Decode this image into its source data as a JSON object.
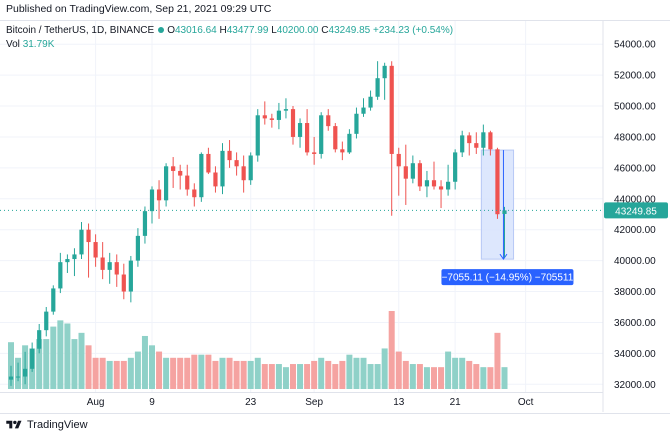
{
  "header": {
    "published": "Published on TradingView.com, Sep 21, 2021 09:29 UTC"
  },
  "legend": {
    "symbol": "Bitcoin / TetherUS, 1D, BINANCE",
    "open_label": "O",
    "open": "43016.64",
    "high_label": "H",
    "high": "43477.99",
    "low_label": "L",
    "low": "40200.00",
    "close_label": "C",
    "close": "43249.85",
    "change": "+234.23 (+0.54%)",
    "volume_label": "Vol",
    "volume": "31.79K"
  },
  "footer": {
    "brand": "TradingView"
  },
  "colors": {
    "up": "#26a69a",
    "down": "#ef5350",
    "volume_up": "#8fd1c8",
    "volume_down": "#f5a3a1",
    "measure_fill": "#d7e3fd",
    "measure_stroke": "#2962ff",
    "measure_label_bg": "#2962ff"
  },
  "price_label": "43249.85",
  "measure": {
    "label": "−7055.11 (−14.95%) −705511",
    "from_price": 47150,
    "to_price": 40095,
    "from_bar": 67,
    "to_bar": 71
  },
  "chart_data": {
    "type": "candlestick",
    "ylim": [
      31500,
      55500
    ],
    "y_ticks": [
      "54000.00",
      "52000.00",
      "50000.00",
      "48000.00",
      "46000.00",
      "44000.00",
      "42000.00",
      "40000.00",
      "38000.00",
      "36000.00",
      "34000.00",
      "32000.00"
    ],
    "y_tick_values": [
      54000,
      52000,
      50000,
      48000,
      46000,
      44000,
      42000,
      40000,
      38000,
      36000,
      34000,
      32000
    ],
    "x_ticks": [
      {
        "label": "Aug",
        "bar": 12
      },
      {
        "label": "9",
        "bar": 20
      },
      {
        "label": "23",
        "bar": 34
      },
      {
        "label": "Sep",
        "bar": 43
      },
      {
        "label": "13",
        "bar": 55
      },
      {
        "label": "21",
        "bar": 63
      },
      {
        "label": "Oct",
        "bar": 73
      }
    ],
    "ohlc": [
      [
        32300,
        33200,
        31900,
        32500
      ],
      [
        32500,
        33400,
        32200,
        32500
      ],
      [
        32500,
        34100,
        32000,
        33000
      ],
      [
        33000,
        34700,
        32800,
        34300
      ],
      [
        34300,
        35900,
        34000,
        35500
      ],
      [
        35500,
        37000,
        35100,
        36700
      ],
      [
        36700,
        38400,
        36500,
        38200
      ],
      [
        38200,
        40500,
        37900,
        39900
      ],
      [
        39900,
        40400,
        39200,
        40100
      ],
      [
        40100,
        40800,
        39000,
        40400
      ],
      [
        40400,
        42500,
        40100,
        42000
      ],
      [
        42000,
        42400,
        38900,
        41200
      ],
      [
        41200,
        41700,
        39600,
        40200
      ],
      [
        40200,
        41200,
        38800,
        39400
      ],
      [
        39400,
        40500,
        38500,
        39900
      ],
      [
        39900,
        40400,
        38300,
        39100
      ],
      [
        39100,
        39800,
        37500,
        38000
      ],
      [
        38000,
        40300,
        37300,
        40000
      ],
      [
        40000,
        42100,
        39600,
        41600
      ],
      [
        41600,
        43500,
        41100,
        43200
      ],
      [
        43200,
        44800,
        42400,
        44600
      ],
      [
        44600,
        45200,
        42700,
        43900
      ],
      [
        43900,
        46300,
        43500,
        46100
      ],
      [
        46100,
        46700,
        44700,
        45800
      ],
      [
        45800,
        46200,
        44600,
        45500
      ],
      [
        45500,
        46200,
        44200,
        44600
      ],
      [
        44600,
        45000,
        43500,
        44100
      ],
      [
        44100,
        47000,
        43800,
        46900
      ],
      [
        46900,
        47300,
        45600,
        45700
      ],
      [
        45700,
        46100,
        44400,
        44800
      ],
      [
        44800,
        47600,
        44300,
        47100
      ],
      [
        47100,
        47800,
        46000,
        46500
      ],
      [
        46500,
        47000,
        45500,
        46100
      ],
      [
        46100,
        46800,
        44400,
        45200
      ],
      [
        45200,
        47000,
        44900,
        46800
      ],
      [
        46800,
        49800,
        46400,
        49400
      ],
      [
        49400,
        50300,
        48800,
        49200
      ],
      [
        49200,
        49500,
        48600,
        49100
      ],
      [
        49100,
        50200,
        48500,
        49700
      ],
      [
        49700,
        50500,
        49200,
        49800
      ],
      [
        49800,
        50000,
        47500,
        48000
      ],
      [
        48000,
        49200,
        47300,
        48900
      ],
      [
        48900,
        49800,
        46800,
        47000
      ],
      [
        47000,
        48000,
        46200,
        46900
      ],
      [
        46900,
        49600,
        46600,
        49400
      ],
      [
        49400,
        49800,
        48400,
        48700
      ],
      [
        48700,
        48900,
        47000,
        47200
      ],
      [
        47200,
        47700,
        46500,
        47000
      ],
      [
        47000,
        48500,
        46900,
        48200
      ],
      [
        48200,
        49900,
        47900,
        49500
      ],
      [
        49500,
        50500,
        49300,
        49900
      ],
      [
        49900,
        51000,
        49700,
        50600
      ],
      [
        50600,
        52900,
        50400,
        51800
      ],
      [
        51800,
        52800,
        50400,
        52600
      ],
      [
        52600,
        52900,
        42900,
        46900
      ],
      [
        46900,
        47300,
        44200,
        46100
      ],
      [
        46100,
        47500,
        43600,
        45300
      ],
      [
        45300,
        46800,
        45000,
        46300
      ],
      [
        46300,
        46500,
        44500,
        44800
      ],
      [
        44800,
        45800,
        44100,
        45200
      ],
      [
        45200,
        46400,
        44600,
        44800
      ],
      [
        44800,
        45200,
        43400,
        44600
      ],
      [
        44600,
        46200,
        44200,
        45100
      ],
      [
        45100,
        47200,
        44600,
        47000
      ],
      [
        47000,
        48400,
        46700,
        48100
      ],
      [
        48100,
        48300,
        46800,
        47600
      ],
      [
        47600,
        48300,
        46900,
        47300
      ],
      [
        47300,
        48800,
        46800,
        48300
      ],
      [
        48300,
        48400,
        46800,
        47200
      ],
      [
        47200,
        47300,
        42700,
        43000
      ],
      [
        43016.64,
        43477.99,
        40200.0,
        43249.85
      ]
    ],
    "volume": [
      1.5,
      1.0,
      1.4,
      1.3,
      1.6,
      1.6,
      2.0,
      2.2,
      2.1,
      1.6,
      1.8,
      1.4,
      1.0,
      1.0,
      0.9,
      0.9,
      0.9,
      1.0,
      1.2,
      1.7,
      1.4,
      1.2,
      1.0,
      1.0,
      1.0,
      1.0,
      1.1,
      1.1,
      1.1,
      0.9,
      1.0,
      1.0,
      0.9,
      0.9,
      0.9,
      1.0,
      0.8,
      0.8,
      0.8,
      0.7,
      0.8,
      0.8,
      0.8,
      0.9,
      1.0,
      0.9,
      0.8,
      0.9,
      1.1,
      1.0,
      1.0,
      0.8,
      0.8,
      1.3,
      2.5,
      1.2,
      0.9,
      0.8,
      0.8,
      0.7,
      0.7,
      0.7,
      1.2,
      1.0,
      1.0,
      0.9,
      0.8,
      0.7,
      0.7,
      1.8,
      0.7
    ]
  }
}
